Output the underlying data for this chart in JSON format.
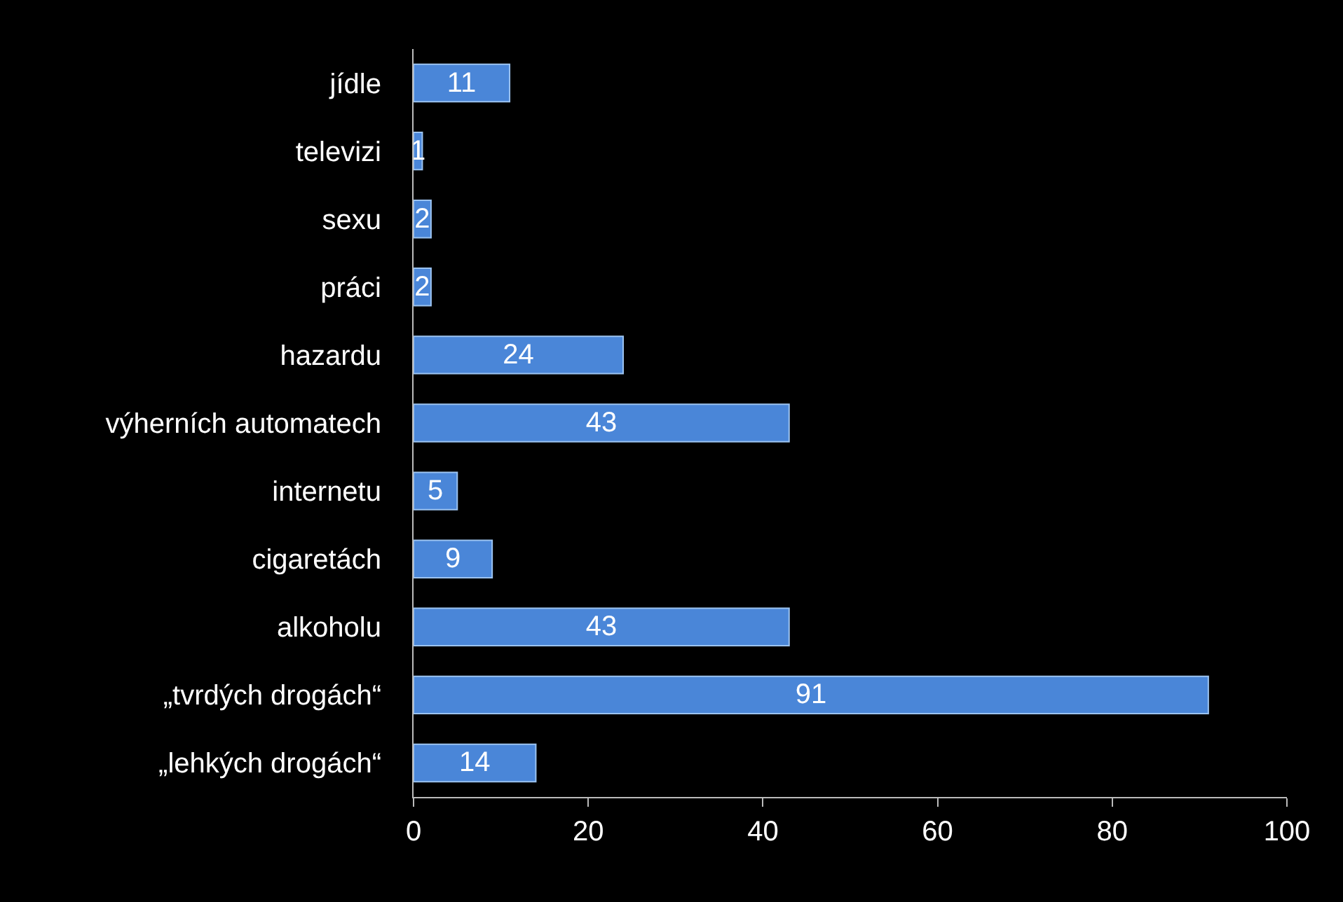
{
  "chart_data": {
    "type": "bar",
    "orientation": "horizontal",
    "categories": [
      "jídle",
      "televizi",
      "sexu",
      "práci",
      "hazardu",
      "výherních automatech",
      "internetu",
      "cigaretách",
      "alkoholu",
      "„tvrdých drogách“",
      "„lehkých drogách“"
    ],
    "values": [
      11,
      1,
      2,
      2,
      24,
      43,
      5,
      9,
      43,
      91,
      14
    ],
    "color": "#4a86d8",
    "xlim": [
      0,
      100
    ],
    "xticks": [
      0,
      20,
      40,
      60,
      80,
      100
    ],
    "data_labels": true,
    "grid": false,
    "legend": false
  }
}
